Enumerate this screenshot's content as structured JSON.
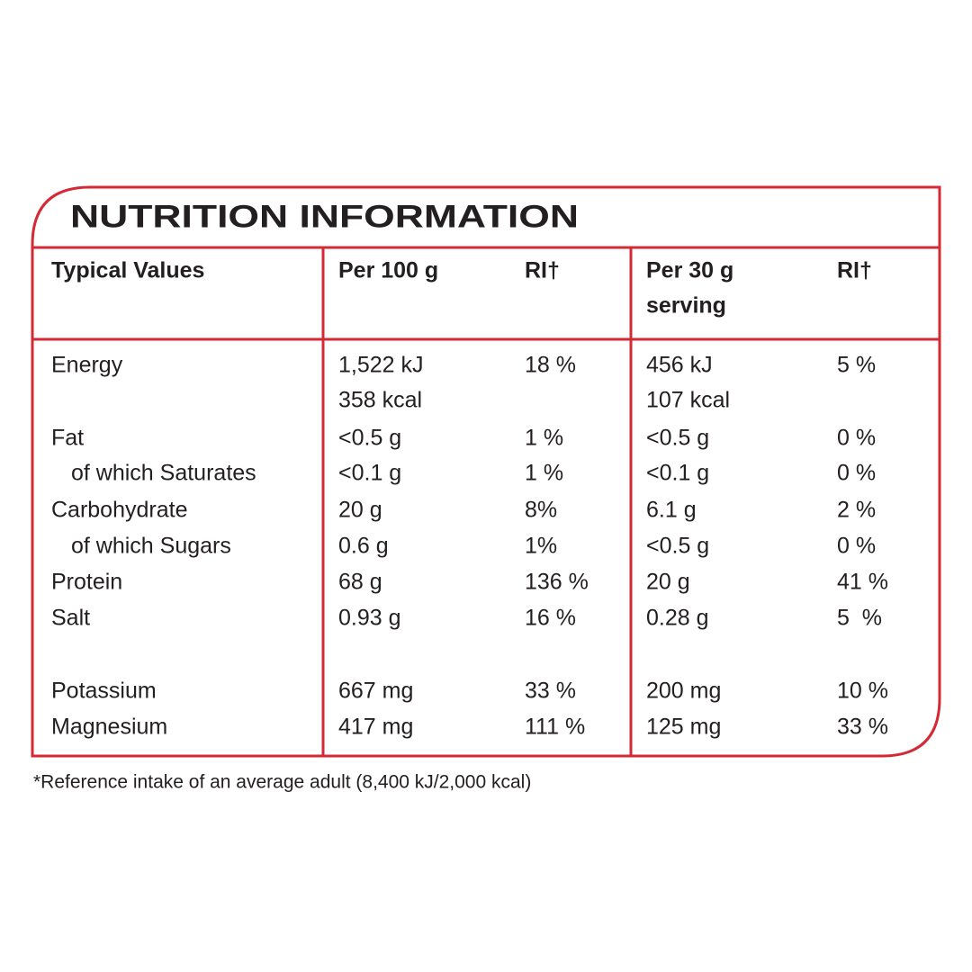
{
  "title": "NUTRITION INFORMATION",
  "table": {
    "header": [
      "Typical Values",
      "Per 100 g",
      "RI†",
      [
        "Per 30 g",
        "serving"
      ],
      "RI†"
    ],
    "rows": [
      [
        "Energy",
        [
          "1,522 kJ",
          "358 kcal"
        ],
        "18 %",
        [
          "456 kJ",
          "107 kcal"
        ],
        "5 %"
      ],
      [
        "Fat",
        "<0.5 g",
        "1 %",
        "<0.5 g",
        "0 %"
      ],
      [
        "of which Saturates",
        "<0.1 g",
        "1 %",
        "<0.1 g",
        "0 %"
      ],
      [
        "Carbohydrate",
        "20 g",
        "8%",
        "6.1 g",
        "2 %"
      ],
      [
        "of which Sugars",
        "0.6 g",
        "1%",
        "<0.5 g",
        "0 %"
      ],
      [
        "Protein",
        "68 g",
        "136 %",
        "20 g",
        "41 %"
      ],
      [
        "Salt",
        "0.93 g",
        "16 %",
        "0.28 g",
        "5  %"
      ],
      [
        "Potassium",
        "667 mg",
        "33 %",
        "200 mg",
        "10 %"
      ],
      [
        "Magnesium",
        "417 mg",
        "111 %",
        "125 mg",
        "33 %"
      ]
    ]
  },
  "footnote": "*Reference intake of an average adult (8,400 kJ/2,000 kcal)"
}
